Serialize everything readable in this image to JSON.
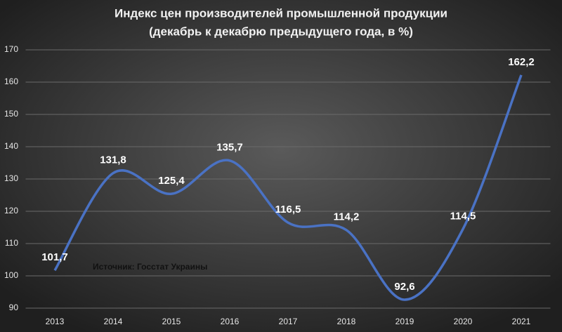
{
  "chart_data": {
    "type": "line",
    "title": "Индекс цен производителей промышленной продукции",
    "subtitle": "(декабрь к декабрю предыдущего года, в %)",
    "annotation": "Источник: Госстат Украины",
    "categories": [
      "2013",
      "2014",
      "2015",
      "2016",
      "2017",
      "2018",
      "2019",
      "2020",
      "2021"
    ],
    "series": [
      {
        "color": "#4a72c4",
        "values": [
          101.7,
          131.8,
          125.4,
          135.7,
          116.5,
          114.2,
          92.6,
          114.5,
          162.2
        ],
        "value_labels": [
          "101,7",
          "131,8",
          "125,4",
          "135,7",
          "116,5",
          "114,2",
          "92,6",
          "114,5",
          "162,2"
        ]
      }
    ],
    "ylim": [
      90,
      170
    ],
    "yticks": [
      90,
      100,
      110,
      120,
      130,
      140,
      150,
      160,
      170
    ],
    "grid": true
  }
}
